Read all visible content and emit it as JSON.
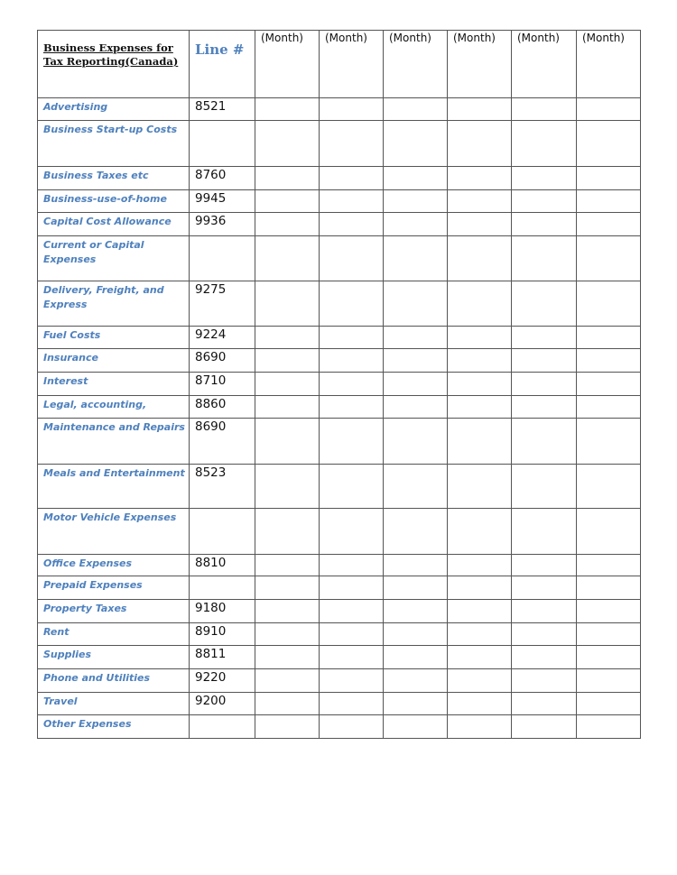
{
  "header": {
    "title": "Business Expenses for Tax Reporting(Canada)",
    "line_label": "Line #",
    "months": [
      "(Month)",
      "(Month)",
      "(Month)",
      "(Month)",
      "(Month)",
      "(Month)"
    ]
  },
  "rows": [
    {
      "category": "Advertising",
      "line": "8521"
    },
    {
      "category": "Business Start-up Costs",
      "line": ""
    },
    {
      "category": "Business Taxes etc",
      "line": "8760"
    },
    {
      "category": "Business-use-of-home",
      "line": "9945"
    },
    {
      "category": "Capital Cost Allowance",
      "line": "9936"
    },
    {
      "category": "Current or Capital Expenses",
      "line": ""
    },
    {
      "category": "Delivery, Freight, and Express",
      "line": "9275"
    },
    {
      "category": "Fuel Costs",
      "line": "9224"
    },
    {
      "category": "Insurance",
      "line": "8690"
    },
    {
      "category": "Interest",
      "line": "8710"
    },
    {
      "category": "Legal, accounting,",
      "line": "8860"
    },
    {
      "category": "Maintenance and Repairs",
      "line": "8690"
    },
    {
      "category": "Meals and Entertainment",
      "line": "8523"
    },
    {
      "category": "Motor Vehicle Expenses",
      "line": ""
    },
    {
      "category": "Office Expenses",
      "line": "8810"
    },
    {
      "category": "Prepaid Expenses",
      "line": ""
    },
    {
      "category": "Property Taxes",
      "line": "9180"
    },
    {
      "category": "Rent",
      "line": "8910"
    },
    {
      "category": "Supplies",
      "line": "8811"
    },
    {
      "category": "Phone and Utilities",
      "line": "9220"
    },
    {
      "category": "Travel",
      "line": "9200"
    },
    {
      "category": "Other Expenses",
      "line": ""
    }
  ]
}
